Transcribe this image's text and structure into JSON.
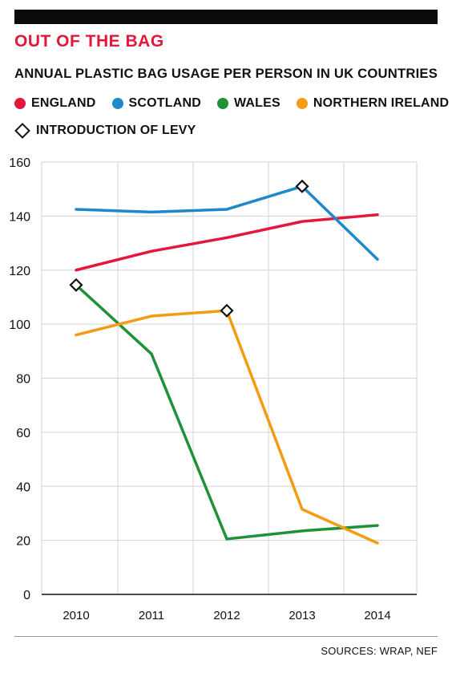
{
  "kicker": "OUT OF THE BAG",
  "title": "ANNUAL PLASTIC BAG USAGE PER PERSON IN UK COUNTRIES",
  "legend": {
    "england": "ENGLAND",
    "scotland": "SCOTLAND",
    "wales": "WALES",
    "northern_ireland": "NORTHERN IRELAND",
    "levy": "INTRODUCTION OF LEVY"
  },
  "source": "SOURCES: WRAP, NEF",
  "colors": {
    "england": "#e2173b",
    "scotland": "#1e88c8",
    "wales": "#1f9138",
    "northern_ireland": "#f39c12",
    "grid": "#d3d3d3",
    "axis": "#111111"
  },
  "chart_data": {
    "type": "line",
    "title": "ANNUAL PLASTIC BAG USAGE PER PERSON IN UK COUNTRIES",
    "x": [
      "2010",
      "2011",
      "2012",
      "2013",
      "2014"
    ],
    "ylim": [
      0,
      160
    ],
    "yticks": [
      0,
      20,
      40,
      60,
      80,
      100,
      120,
      140,
      160
    ],
    "grid": true,
    "series": [
      {
        "name": "ENGLAND",
        "key": "england",
        "values": [
          120,
          127,
          132,
          138,
          140.5
        ]
      },
      {
        "name": "SCOTLAND",
        "key": "scotland",
        "values": [
          142.5,
          141.5,
          142.5,
          151,
          124
        ]
      },
      {
        "name": "WALES",
        "key": "wales",
        "values": [
          114.5,
          89,
          20.5,
          23.5,
          25.5
        ]
      },
      {
        "name": "NORTHERN IRELAND",
        "key": "northern_ireland",
        "values": [
          96,
          103,
          105,
          31.5,
          19
        ]
      }
    ],
    "levy_markers": [
      {
        "series": "WALES",
        "x": "2010",
        "y": 114.5
      },
      {
        "series": "NORTHERN IRELAND",
        "x": "2012",
        "y": 105
      },
      {
        "series": "SCOTLAND",
        "x": "2013",
        "y": 151
      }
    ]
  }
}
